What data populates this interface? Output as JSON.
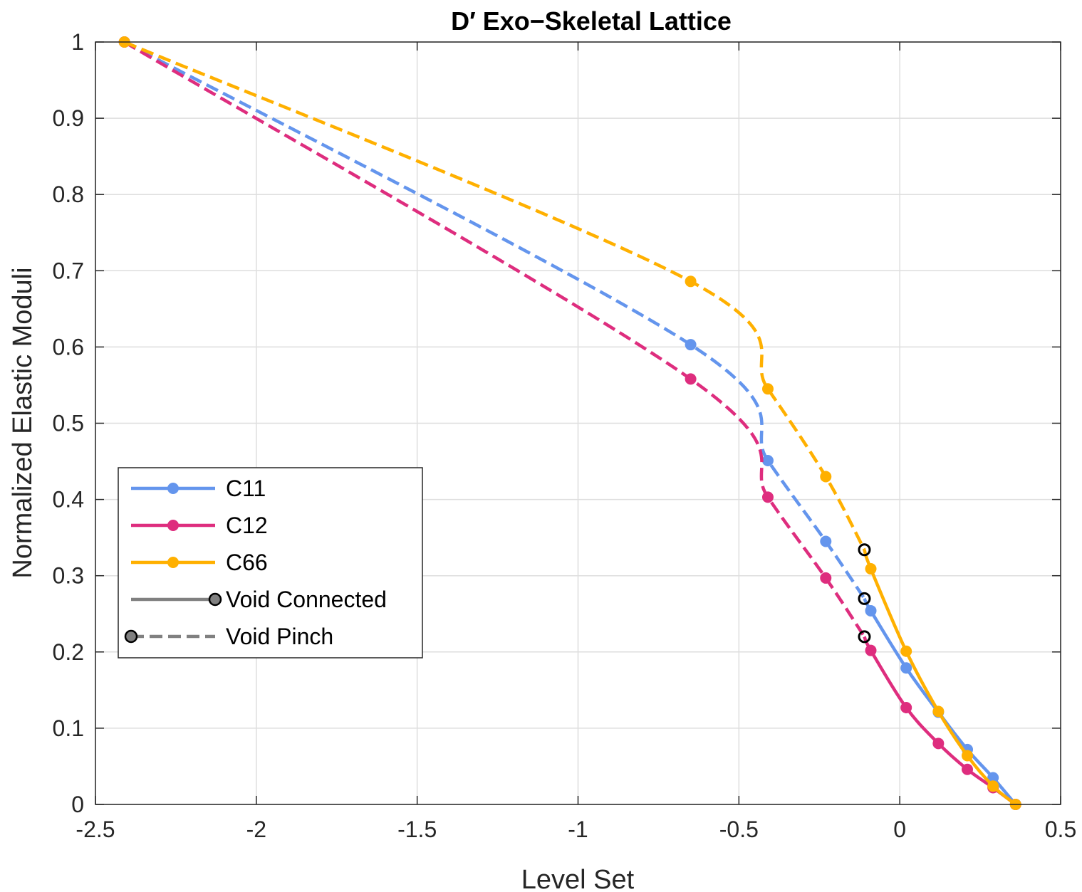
{
  "chart_data": {
    "type": "line",
    "title": "D′ Exo−Skeletal Lattice",
    "xlabel": "Level Set",
    "ylabel": "Normalized Elastic Moduli",
    "xlim": [
      -2.5,
      0.5
    ],
    "ylim": [
      0,
      1
    ],
    "xticks": [
      -2.5,
      -2,
      -1.5,
      -1,
      -0.5,
      0,
      0.5
    ],
    "xtick_labels": [
      "-2.5",
      "-2",
      "-1.5",
      "-1",
      "-0.5",
      "0",
      "0.5"
    ],
    "yticks": [
      0,
      0.1,
      0.2,
      0.3,
      0.4,
      0.5,
      0.6,
      0.7,
      0.8,
      0.9,
      1
    ],
    "ytick_labels": [
      "0",
      "0.1",
      "0.2",
      "0.3",
      "0.4",
      "0.5",
      "0.6",
      "0.7",
      "0.8",
      "0.9",
      "1"
    ],
    "grid": true,
    "legend_position": "bottom-left",
    "series": [
      {
        "name": "C11",
        "color": "#6495ED",
        "pinch_x": [
          -2.41,
          -0.65,
          -0.41,
          -0.23,
          -0.11
        ],
        "pinch_y": [
          1.0,
          0.603,
          0.451,
          0.345,
          0.27
        ],
        "connected_x": [
          -0.11,
          -0.09,
          0.02,
          0.12,
          0.21,
          0.29,
          0.36
        ],
        "connected_y": [
          0.27,
          0.254,
          0.179,
          0.121,
          0.072,
          0.035,
          0.0
        ],
        "markers_x": [
          -2.41,
          -0.65,
          -0.41,
          -0.23,
          -0.09,
          0.02,
          0.12,
          0.21,
          0.29,
          0.36
        ],
        "markers_y": [
          1.0,
          0.603,
          0.451,
          0.345,
          0.254,
          0.179,
          0.121,
          0.072,
          0.035,
          0.0
        ]
      },
      {
        "name": "C12",
        "color": "#DE2D7E",
        "pinch_x": [
          -2.41,
          -0.65,
          -0.41,
          -0.23,
          -0.11
        ],
        "pinch_y": [
          1.0,
          0.558,
          0.403,
          0.297,
          0.22
        ],
        "connected_x": [
          -0.11,
          -0.09,
          0.02,
          0.12,
          0.21,
          0.29,
          0.36
        ],
        "connected_y": [
          0.22,
          0.202,
          0.127,
          0.08,
          0.046,
          0.022,
          0.0
        ],
        "markers_x": [
          -2.41,
          -0.65,
          -0.41,
          -0.23,
          -0.09,
          0.02,
          0.12,
          0.21,
          0.29,
          0.36
        ],
        "markers_y": [
          1.0,
          0.558,
          0.403,
          0.297,
          0.202,
          0.127,
          0.08,
          0.046,
          0.022,
          0.0
        ]
      },
      {
        "name": "C66",
        "color": "#FFB000",
        "pinch_x": [
          -2.41,
          -0.65,
          -0.41,
          -0.23,
          -0.11
        ],
        "pinch_y": [
          1.0,
          0.686,
          0.545,
          0.43,
          0.334
        ],
        "connected_x": [
          -0.11,
          -0.09,
          0.02,
          0.12,
          0.21,
          0.29,
          0.36
        ],
        "connected_y": [
          0.334,
          0.309,
          0.201,
          0.122,
          0.064,
          0.024,
          0.0
        ],
        "markers_x": [
          -2.41,
          -0.65,
          -0.41,
          -0.23,
          -0.09,
          0.02,
          0.12,
          0.21,
          0.29,
          0.36
        ],
        "markers_y": [
          1.0,
          0.686,
          0.545,
          0.43,
          0.309,
          0.201,
          0.122,
          0.064,
          0.024,
          0.0
        ]
      }
    ],
    "transition_points": [
      {
        "x": -0.11,
        "y": 0.334
      },
      {
        "x": -0.11,
        "y": 0.27
      },
      {
        "x": -0.11,
        "y": 0.22
      }
    ],
    "legend": [
      {
        "label": "C11",
        "color": "#6495ED",
        "style": "solid"
      },
      {
        "label": "C12",
        "color": "#DE2D7E",
        "style": "solid"
      },
      {
        "label": "C66",
        "color": "#FFB000",
        "style": "solid"
      },
      {
        "label": "Void Connected",
        "color": "#808080",
        "style": "solid"
      },
      {
        "label": "Void Pinch",
        "color": "#808080",
        "style": "dashed"
      }
    ]
  }
}
